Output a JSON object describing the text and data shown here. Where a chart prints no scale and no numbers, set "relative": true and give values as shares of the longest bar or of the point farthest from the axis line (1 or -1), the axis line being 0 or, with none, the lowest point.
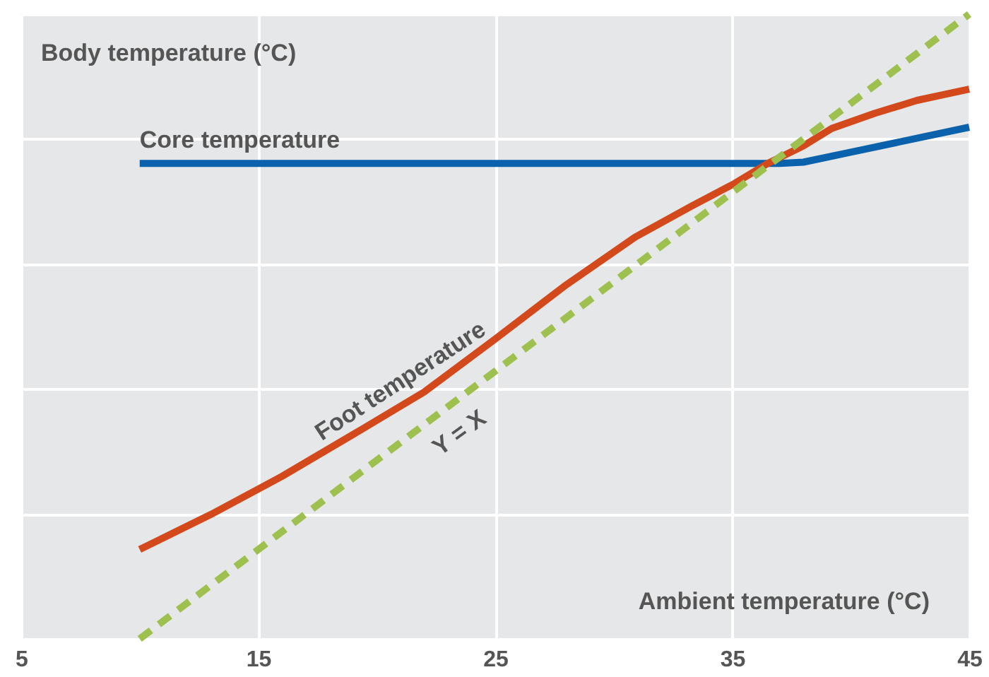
{
  "chart_data": {
    "type": "line",
    "title": "Body temperature  (°C)",
    "xlabel": "Ambient temperature (°C)",
    "relative": true,
    "xlim": [
      5,
      45
    ],
    "xticks": [
      5,
      15,
      25,
      35,
      45
    ],
    "grid": true,
    "marker": "none",
    "series": [
      {
        "name": "Core temperature",
        "color": "#0a62ad",
        "line_style": "solid",
        "x": [
          10,
          37,
          38,
          40,
          45
        ],
        "values": [
          0.761,
          0.761,
          0.763,
          0.779,
          0.819
        ]
      },
      {
        "name": "Foot temperature",
        "color": "#d4491c",
        "line_style": "solid",
        "x": [
          10,
          13,
          16,
          19,
          22,
          25,
          27.9,
          30.9,
          33.3,
          35.1,
          36.5,
          38,
          39.2,
          41,
          42.8,
          45
        ],
        "values": [
          0.143,
          0.199,
          0.26,
          0.327,
          0.395,
          0.48,
          0.564,
          0.643,
          0.693,
          0.729,
          0.761,
          0.789,
          0.817,
          0.841,
          0.862,
          0.88
        ]
      },
      {
        "name": "Y = X",
        "color": "#9dc04f",
        "line_style": "dashed",
        "x": [
          10,
          45
        ],
        "values": [
          0,
          1
        ]
      }
    ]
  }
}
